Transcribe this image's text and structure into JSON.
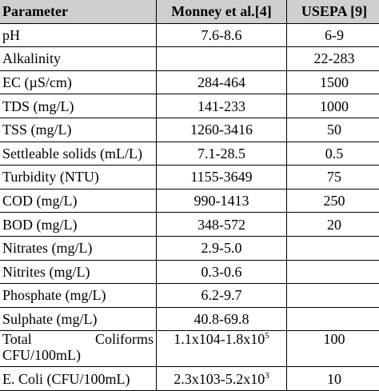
{
  "table": {
    "headers": {
      "parameter": "Parameter",
      "monney": "Monney et al.[4]",
      "usepa": "USEPA [9]"
    },
    "rows": [
      {
        "parameter": "pH",
        "monney": "7.6-8.6",
        "usepa": "6-9"
      },
      {
        "parameter": "Alkalinity",
        "monney": "",
        "usepa": "22-283"
      },
      {
        "parameter": "EC (µS/cm)",
        "monney": "284-464",
        "usepa": "1500"
      },
      {
        "parameter": "TDS (mg/L)",
        "monney": "141-233",
        "usepa": "1000"
      },
      {
        "parameter": "TSS (mg/L)",
        "monney": "1260-3416",
        "usepa": "50"
      },
      {
        "parameter": "Settleable solids (mL/L)",
        "monney": "7.1-28.5",
        "usepa": "0.5"
      },
      {
        "parameter": "Turbidity (NTU)",
        "monney": "1155-3649",
        "usepa": "75"
      },
      {
        "parameter": "COD (mg/L)",
        "monney": "990-1413",
        "usepa": "250"
      },
      {
        "parameter": "BOD (mg/L)",
        "monney": "348-572",
        "usepa": "20"
      },
      {
        "parameter": "Nitrates (mg/L)",
        "monney": "2.9-5.0",
        "usepa": ""
      },
      {
        "parameter": "Nitrites (mg/L)",
        "monney": "0.3-0.6",
        "usepa": ""
      },
      {
        "parameter": "Phosphate (mg/L)",
        "monney": "6.2-9.7",
        "usepa": ""
      },
      {
        "parameter": "Sulphate (mg/L)",
        "monney": "40.8-69.8",
        "usepa": ""
      }
    ],
    "total_coliforms": {
      "param_word1": "Total",
      "param_word2": "Coliforms",
      "param_line2": "CFU/100mL)",
      "monney_base": "1.1x104-1.8x10",
      "monney_sup": "5",
      "usepa": "100"
    },
    "e_coli": {
      "parameter": "E. Coli (CFU/100mL)",
      "monney_base": "2.3x103-5.2x10",
      "monney_sup": "3",
      "usepa": "10"
    }
  }
}
